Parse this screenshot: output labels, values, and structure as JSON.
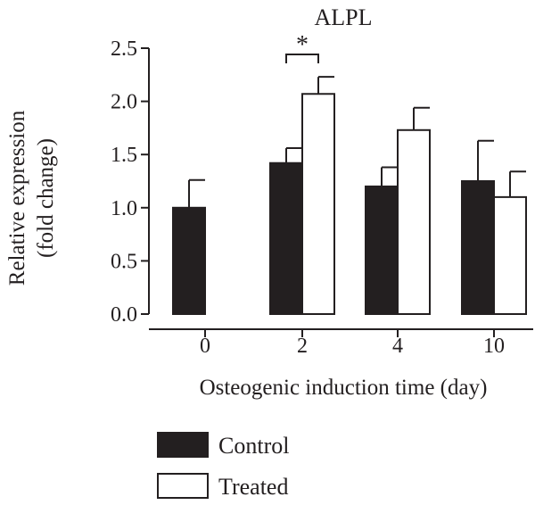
{
  "chart_data": {
    "type": "bar",
    "title": "ALPL",
    "xlabel": "Osteogenic induction time (day)",
    "ylabel_lines": [
      "Relative expression",
      "(fold change)"
    ],
    "categories": [
      "0",
      "2",
      "4",
      "10"
    ],
    "ylim": [
      0,
      2.5
    ],
    "yticks": [
      0.0,
      0.5,
      1.0,
      1.5,
      2.0,
      2.5
    ],
    "ytick_labels": [
      "0.0",
      "0.5",
      "1.0",
      "1.5",
      "2.0",
      "2.5"
    ],
    "grid": false,
    "legend_position": "bottom-left",
    "series": [
      {
        "name": "Control",
        "fill": "#231f20",
        "values": [
          1.0,
          1.42,
          1.2,
          1.25
        ],
        "errors": [
          0.26,
          0.14,
          0.18,
          0.38
        ]
      },
      {
        "name": "Treated",
        "fill": "#ffffff",
        "values": [
          null,
          2.07,
          1.73,
          1.1
        ],
        "errors": [
          null,
          0.16,
          0.21,
          0.24
        ]
      }
    ],
    "annotations": [
      {
        "label": "*",
        "category": "2",
        "between": [
          "Control",
          "Treated"
        ]
      }
    ]
  }
}
